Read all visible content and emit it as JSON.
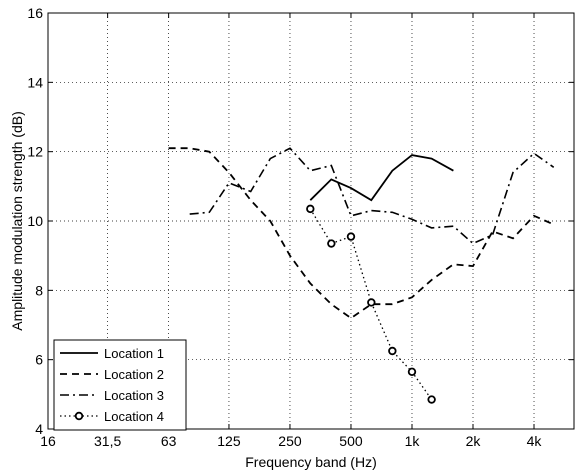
{
  "chart_data": {
    "type": "line",
    "xlabel": "Frequency band (Hz)",
    "ylabel": "Amplitude modulation strength (dB)",
    "x_scale": "log2",
    "x_ticks": [
      {
        "value": 16,
        "label": "16"
      },
      {
        "value": 31.5,
        "label": "31,5"
      },
      {
        "value": 63,
        "label": "63"
      },
      {
        "value": 125,
        "label": "125"
      },
      {
        "value": 250,
        "label": "250"
      },
      {
        "value": 500,
        "label": "500"
      },
      {
        "value": 1000,
        "label": "1k"
      },
      {
        "value": 2000,
        "label": "2k"
      },
      {
        "value": 4000,
        "label": "4k"
      }
    ],
    "xlim": [
      16,
      6300
    ],
    "ylim": [
      4,
      16
    ],
    "y_ticks": [
      4,
      6,
      8,
      10,
      12,
      14,
      16
    ],
    "grid": true,
    "legend_position": "bottom-left",
    "series": [
      {
        "name": "Location 1",
        "style": "solid",
        "marker": "none",
        "x": [
          315,
          400,
          500,
          630,
          800,
          1000,
          1250,
          1600
        ],
        "y": [
          10.6,
          11.2,
          10.95,
          10.6,
          11.45,
          11.9,
          11.8,
          11.45
        ]
      },
      {
        "name": "Location 2",
        "style": "dashed",
        "marker": "none",
        "x": [
          63,
          80,
          100,
          125,
          160,
          200,
          250,
          315,
          400,
          500,
          630,
          800,
          1000,
          1250,
          1600,
          2000,
          2500,
          3150,
          4000,
          5000
        ],
        "y": [
          12.1,
          12.1,
          12.0,
          11.4,
          10.6,
          10.0,
          9.0,
          8.2,
          7.6,
          7.2,
          7.6,
          7.6,
          7.8,
          8.3,
          8.75,
          8.7,
          9.7,
          9.5,
          10.15,
          9.9
        ]
      },
      {
        "name": "Location 3",
        "style": "dashdot",
        "marker": "none",
        "x": [
          80,
          100,
          125,
          160,
          200,
          250,
          315,
          400,
          500,
          630,
          800,
          1000,
          1250,
          1600,
          2000,
          2500,
          3150,
          4000,
          5000
        ],
        "y": [
          10.2,
          10.25,
          11.1,
          10.85,
          11.8,
          12.1,
          11.45,
          11.6,
          10.15,
          10.3,
          10.25,
          10.05,
          9.8,
          9.85,
          9.35,
          9.6,
          11.4,
          11.95,
          11.55
        ]
      },
      {
        "name": "Location 4",
        "style": "dotted",
        "marker": "circle",
        "x": [
          315,
          400,
          500,
          630,
          800,
          1000,
          1250
        ],
        "y": [
          10.35,
          9.35,
          9.55,
          7.65,
          6.25,
          5.65,
          4.85
        ]
      }
    ]
  }
}
